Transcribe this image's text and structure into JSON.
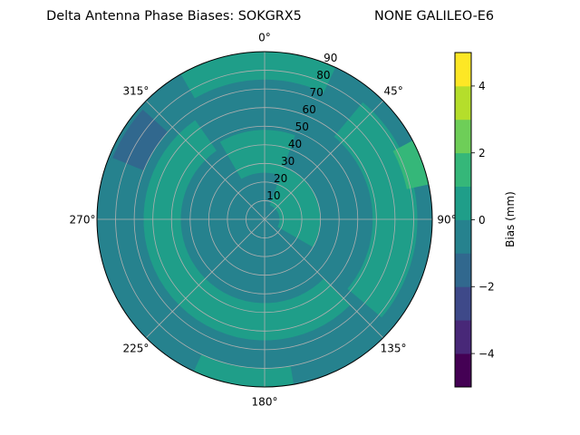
{
  "chart_data": {
    "type": "heatmap",
    "projection": "polar",
    "title": "Delta Antenna Phase Biases: SOKGRX5",
    "subtitle": "NONE GALILEO-E6",
    "theta_direction": "clockwise",
    "theta_zero": "north",
    "angle_ticks": [
      "0°",
      "45°",
      "90°",
      "135°",
      "180°",
      "225°",
      "270°",
      "315°"
    ],
    "angle_tick_values": [
      0,
      45,
      90,
      135,
      180,
      225,
      270,
      315
    ],
    "radial_ticks": [
      "10",
      "20",
      "30",
      "40",
      "50",
      "60",
      "70",
      "80",
      "90"
    ],
    "radial_tick_values": [
      10,
      20,
      30,
      40,
      50,
      60,
      70,
      80,
      90
    ],
    "rlim": [
      0,
      90
    ],
    "grid": true,
    "colorbar": {
      "label": "Bias (mm)",
      "range": [
        -5,
        5
      ],
      "levels": [
        -5,
        -4,
        -3,
        -2,
        -1,
        0,
        1,
        2,
        3,
        4,
        5
      ],
      "tick_labels": [
        "−4",
        "−2",
        "0",
        "2",
        "4"
      ],
      "tick_values": [
        -4,
        -2,
        0,
        2,
        4
      ],
      "colormap": "viridis",
      "colors": [
        "#440154",
        "#482878",
        "#3e4989",
        "#31688e",
        "#26828e",
        "#1f9e89",
        "#35b779",
        "#6ece58",
        "#b5de2b",
        "#fde725"
      ]
    },
    "background_level": [
      -1,
      0
    ],
    "regions": [
      {
        "level": [
          0,
          1
        ],
        "from_deg": 40,
        "to_deg": 130,
        "inner": 58,
        "outer": 82
      },
      {
        "level": [
          0,
          1
        ],
        "from_deg": 135,
        "to_deg": 325,
        "inner": 45,
        "outer": 65
      },
      {
        "level": [
          0,
          1
        ],
        "from_deg": 330,
        "to_deg": 380,
        "inner": 25,
        "outer": 48
      },
      {
        "level": [
          0,
          1
        ],
        "from_deg": 20,
        "to_deg": 120,
        "inner": 8,
        "outer": 30
      },
      {
        "level": [
          0,
          1
        ],
        "from_deg": 330,
        "to_deg": 385,
        "inner": 75,
        "outer": 90
      },
      {
        "level": [
          0,
          1
        ],
        "from_deg": 170,
        "to_deg": 205,
        "inner": 80,
        "outer": 90
      },
      {
        "level": [
          1,
          2
        ],
        "from_deg": 62,
        "to_deg": 78,
        "inner": 78,
        "outer": 90
      },
      {
        "level": [
          -2,
          -1
        ],
        "from_deg": 292,
        "to_deg": 312,
        "inner": 70,
        "outer": 88
      }
    ]
  }
}
